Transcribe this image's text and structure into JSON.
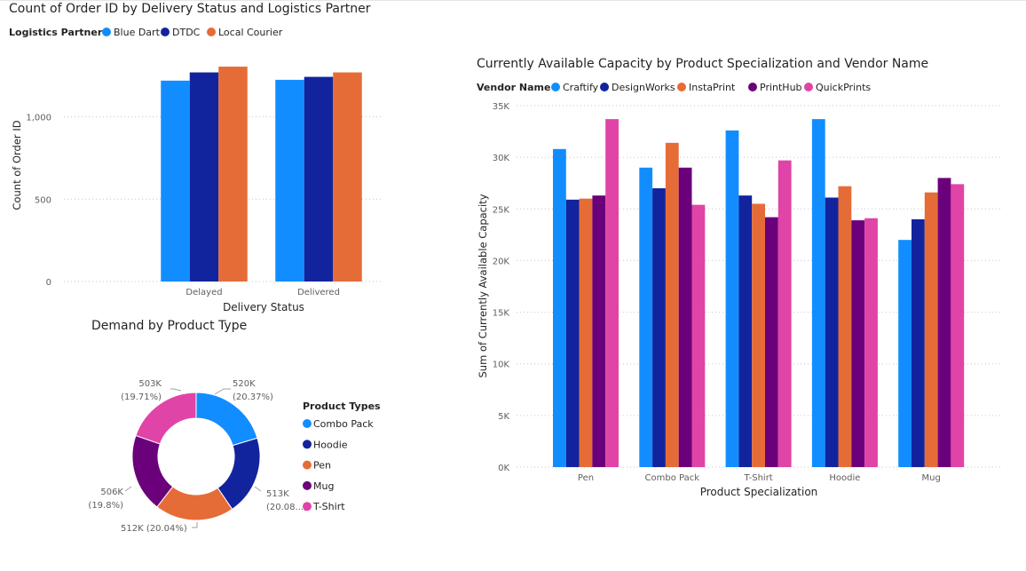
{
  "colors": {
    "blue_dart": "#118DFF",
    "dtdc": "#12239E",
    "local_courier": "#E66C37",
    "craftify": "#118DFF",
    "designworks": "#12239E",
    "instaprint": "#E66C37",
    "printhub": "#6B007B",
    "quickprints": "#E044A7",
    "combo_pack": "#118DFF",
    "hoodie": "#12239E",
    "pen": "#E66C37",
    "mug": "#6B007B",
    "t_shirt": "#E044A7"
  },
  "chart_data": [
    {
      "type": "bar",
      "title": "Count of Order ID by Delivery Status and Logistics Partner",
      "legend_title": "Logistics Partner",
      "categories": [
        "Delayed",
        "Delivered"
      ],
      "series": [
        {
          "name": "Blue Dart",
          "color": "#118DFF",
          "values": [
            1220,
            1225
          ]
        },
        {
          "name": "DTDC",
          "color": "#12239E",
          "values": [
            1270,
            1243
          ]
        },
        {
          "name": "Local Courier",
          "color": "#E66C37",
          "values": [
            1305,
            1270
          ]
        }
      ],
      "xlabel": "Delivery Status",
      "ylabel": "Count of Order ID",
      "ylim": [
        0,
        1300
      ],
      "yticks": [
        0,
        500,
        1000
      ],
      "ytick_labels": [
        "0",
        "500",
        "1,000"
      ]
    },
    {
      "type": "bar",
      "title": "Currently Available Capacity by Product Specialization and Vendor Name",
      "legend_title": "Vendor Name",
      "categories": [
        "Pen",
        "Combo Pack",
        "T-Shirt",
        "Hoodie",
        "Mug"
      ],
      "series": [
        {
          "name": "Craftify",
          "color": "#118DFF",
          "values": [
            30800,
            29000,
            32600,
            33700,
            22000
          ]
        },
        {
          "name": "DesignWorks",
          "color": "#12239E",
          "values": [
            25900,
            27000,
            26300,
            26100,
            24000
          ]
        },
        {
          "name": "InstaPrint",
          "color": "#E66C37",
          "values": [
            26000,
            31400,
            25500,
            27200,
            26600
          ]
        },
        {
          "name": "PrintHub",
          "color": "#6B007B",
          "values": [
            26300,
            29000,
            24200,
            23900,
            28000
          ]
        },
        {
          "name": "QuickPrints",
          "color": "#E044A7",
          "values": [
            33700,
            25400,
            29700,
            24100,
            27400
          ]
        }
      ],
      "xlabel": "Product Specialization",
      "ylabel": "Sum of Currently Available Capacity",
      "ylim": [
        0,
        35000
      ],
      "yticks": [
        0,
        5000,
        10000,
        15000,
        20000,
        25000,
        30000,
        35000
      ],
      "ytick_labels": [
        "0K",
        "5K",
        "10K",
        "15K",
        "20K",
        "25K",
        "30K",
        "35K"
      ]
    },
    {
      "type": "pie",
      "title": "Demand by Product Type",
      "legend_title": "Product Types",
      "slices": [
        {
          "name": "Combo Pack",
          "color": "#118DFF",
          "value": 520,
          "pct": 20.37,
          "label_value": "520K",
          "label_pct": "(20.37%)"
        },
        {
          "name": "Hoodie",
          "color": "#12239E",
          "value": 513,
          "pct": 20.08,
          "label_value": "513K",
          "label_pct": "(20.08...)"
        },
        {
          "name": "Pen",
          "color": "#E66C37",
          "value": 512,
          "pct": 20.04,
          "label_value": "512K (20.04%)",
          "label_pct": ""
        },
        {
          "name": "Mug",
          "color": "#6B007B",
          "value": 506,
          "pct": 19.8,
          "label_value": "506K",
          "label_pct": "(19.8%)"
        },
        {
          "name": "T-Shirt",
          "color": "#E044A7",
          "value": 503,
          "pct": 19.71,
          "label_value": "503K",
          "label_pct": "(19.71%)"
        }
      ]
    }
  ]
}
